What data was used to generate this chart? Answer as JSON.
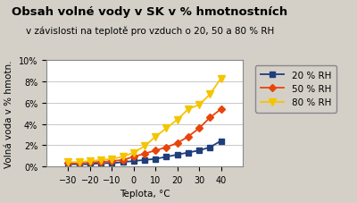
{
  "title_line1": "Obsah volné vody v SK v % hmotnostních",
  "title_line2": "v závislosti na teplotě pro vzduch o 20, 50 a 80 % RH",
  "xlabel": "Teplota, °C",
  "ylabel": "Volná voda v % hmotn.",
  "xlim": [
    -40,
    50
  ],
  "ylim": [
    0,
    0.1
  ],
  "xticks": [
    -30,
    -20,
    -10,
    0,
    10,
    20,
    30,
    40
  ],
  "yticks": [
    0,
    0.02,
    0.04,
    0.06,
    0.08,
    0.1
  ],
  "background_color": "#d4d0c8",
  "plot_bg_color": "#ffffff",
  "series": [
    {
      "label": "20 % RH",
      "color": "#1f3e7c",
      "marker": "s",
      "markersize": 4,
      "x": [
        -30,
        -25,
        -20,
        -15,
        -10,
        -5,
        0,
        5,
        10,
        15,
        20,
        25,
        30,
        35,
        40
      ],
      "y": [
        0.002,
        0.002,
        0.002,
        0.003,
        0.003,
        0.004,
        0.005,
        0.006,
        0.007,
        0.009,
        0.011,
        0.013,
        0.015,
        0.018,
        0.024
      ]
    },
    {
      "label": "50 % RH",
      "color": "#e8450a",
      "marker": "D",
      "markersize": 4,
      "x": [
        -30,
        -25,
        -20,
        -15,
        -10,
        -5,
        0,
        5,
        10,
        15,
        20,
        25,
        30,
        35,
        40
      ],
      "y": [
        0.003,
        0.003,
        0.004,
        0.004,
        0.005,
        0.006,
        0.009,
        0.012,
        0.015,
        0.018,
        0.022,
        0.028,
        0.036,
        0.046,
        0.054
      ]
    },
    {
      "label": "80 % RH",
      "color": "#f5c400",
      "marker": "v",
      "markersize": 6,
      "x": [
        -30,
        -25,
        -20,
        -15,
        -10,
        -5,
        0,
        5,
        10,
        15,
        20,
        25,
        30,
        35,
        40
      ],
      "y": [
        0.004,
        0.004,
        0.005,
        0.006,
        0.007,
        0.009,
        0.013,
        0.019,
        0.028,
        0.036,
        0.044,
        0.054,
        0.058,
        0.068,
        0.083
      ]
    }
  ],
  "grid_color": "#c8c8c8",
  "title1_fontsize": 9.5,
  "title2_fontsize": 7.5,
  "axis_label_fontsize": 7.5,
  "tick_fontsize": 7,
  "legend_fontsize": 7.5
}
